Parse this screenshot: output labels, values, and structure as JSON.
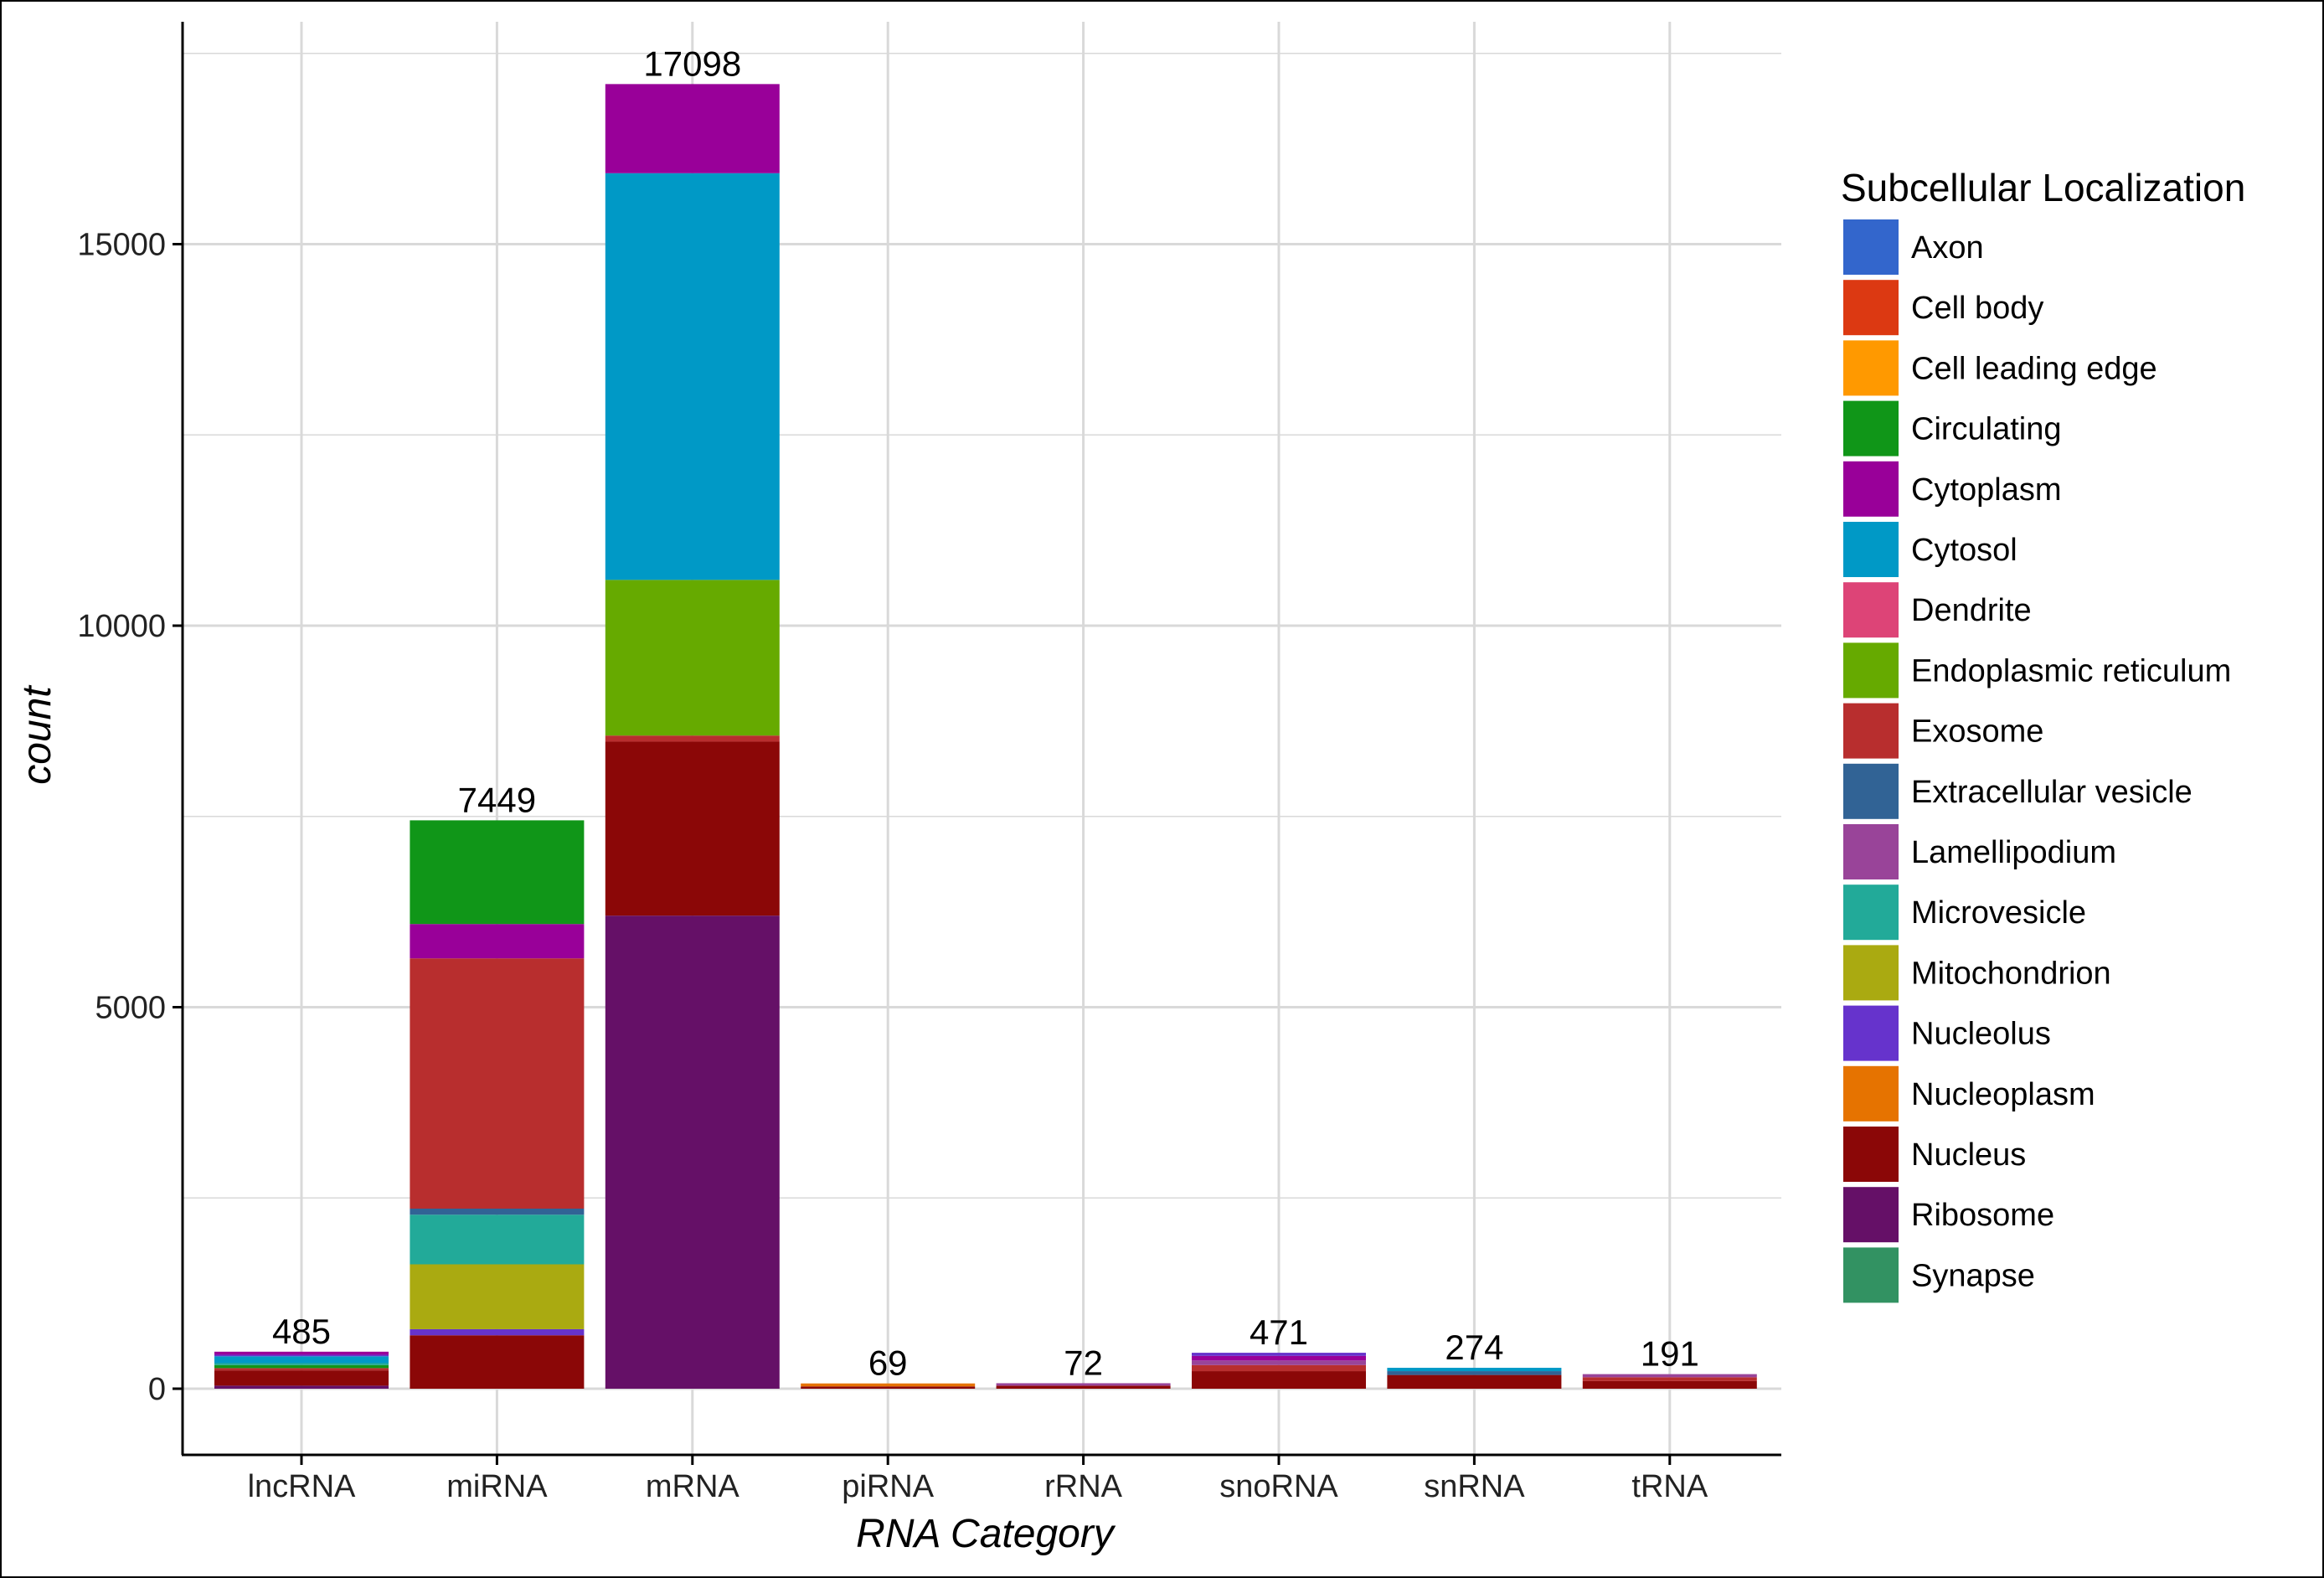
{
  "chart_data": {
    "type": "bar",
    "stacked": true,
    "title": "",
    "xlabel": "RNA Category",
    "ylabel": "count",
    "ylim": [
      -800,
      17800
    ],
    "yticks": [
      0,
      5000,
      10000,
      15000
    ],
    "categories": [
      "lncRNA",
      "miRNA",
      "mRNA",
      "piRNA",
      "rRNA",
      "snoRNA",
      "snRNA",
      "tRNA"
    ],
    "totals": [
      485,
      7449,
      17098,
      69,
      72,
      471,
      274,
      191
    ],
    "legend_title": "Subcellular Localization",
    "legend_position": "right",
    "legend": [
      {
        "name": "Axon",
        "color": "#3366CC"
      },
      {
        "name": "Cell body",
        "color": "#DC3912"
      },
      {
        "name": "Cell leading edge",
        "color": "#FF9900"
      },
      {
        "name": "Circulating",
        "color": "#109618"
      },
      {
        "name": "Cytoplasm",
        "color": "#990099"
      },
      {
        "name": "Cytosol",
        "color": "#0099C6"
      },
      {
        "name": "Dendrite",
        "color": "#DD4477"
      },
      {
        "name": "Endoplasmic reticulum",
        "color": "#66AA00"
      },
      {
        "name": "Exosome",
        "color": "#B82E2E"
      },
      {
        "name": "Extracellular vesicle",
        "color": "#316395"
      },
      {
        "name": "Lamellipodium",
        "color": "#994499"
      },
      {
        "name": "Microvesicle",
        "color": "#22AA99"
      },
      {
        "name": "Mitochondrion",
        "color": "#AAAA11"
      },
      {
        "name": "Nucleolus",
        "color": "#6633CC"
      },
      {
        "name": "Nucleoplasm",
        "color": "#E67300"
      },
      {
        "name": "Nucleus",
        "color": "#8B0707"
      },
      {
        "name": "Ribosome",
        "color": "#651067"
      },
      {
        "name": "Synapse",
        "color": "#329262"
      }
    ],
    "series_values": {
      "lncRNA": [
        {
          "name": "Ribosome",
          "value": 40
        },
        {
          "name": "Nucleus",
          "value": 200
        },
        {
          "name": "Exosome",
          "value": 30
        },
        {
          "name": "Circulating",
          "value": 40
        },
        {
          "name": "Microvesicle",
          "value": 25
        },
        {
          "name": "Cytosol",
          "value": 90
        },
        {
          "name": "Nucleolus",
          "value": 20
        },
        {
          "name": "Cytoplasm",
          "value": 40
        }
      ],
      "miRNA": [
        {
          "name": "Nucleus",
          "value": 700
        },
        {
          "name": "Nucleolus",
          "value": 80
        },
        {
          "name": "Mitochondrion",
          "value": 850
        },
        {
          "name": "Microvesicle",
          "value": 650
        },
        {
          "name": "Extracellular vesicle",
          "value": 80
        },
        {
          "name": "Exosome",
          "value": 3280
        },
        {
          "name": "Cytoplasm",
          "value": 450
        },
        {
          "name": "Circulating",
          "value": 1359
        }
      ],
      "mRNA": [
        {
          "name": "Ribosome",
          "value": 6200
        },
        {
          "name": "Nucleus",
          "value": 2280
        },
        {
          "name": "Exosome",
          "value": 80
        },
        {
          "name": "Endoplasmic reticulum",
          "value": 2040
        },
        {
          "name": "Cytosol",
          "value": 5330
        },
        {
          "name": "Cytoplasm",
          "value": 1168
        }
      ],
      "piRNA": [
        {
          "name": "Nucleus",
          "value": 30
        },
        {
          "name": "Nucleoplasm",
          "value": 39
        }
      ],
      "rRNA": [
        {
          "name": "Nucleus",
          "value": 40
        },
        {
          "name": "Lamellipodium",
          "value": 32
        }
      ],
      "snoRNA": [
        {
          "name": "Nucleus",
          "value": 230
        },
        {
          "name": "Exosome",
          "value": 80
        },
        {
          "name": "Lamellipodium",
          "value": 60
        },
        {
          "name": "Cytoplasm",
          "value": 60
        },
        {
          "name": "Nucleolus",
          "value": 41
        }
      ],
      "snRNA": [
        {
          "name": "Nucleus",
          "value": 180
        },
        {
          "name": "Extracellular vesicle",
          "value": 50
        },
        {
          "name": "Cytosol",
          "value": 44
        }
      ],
      "tRNA": [
        {
          "name": "Nucleus",
          "value": 100
        },
        {
          "name": "Exosome",
          "value": 50
        },
        {
          "name": "Lamellipodium",
          "value": 41
        }
      ]
    }
  }
}
